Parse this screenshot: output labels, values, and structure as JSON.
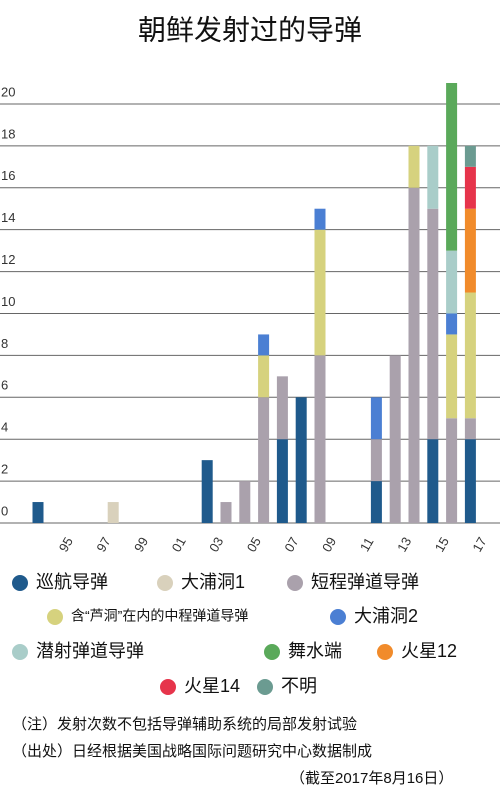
{
  "chart_data": {
    "type": "bar",
    "stacked": true,
    "title": "朝鲜发射过的导弹",
    "categories": [
      null,
      "95",
      null,
      "97",
      null,
      "99",
      null,
      "01",
      null,
      "03",
      null,
      "05",
      null,
      "07",
      null,
      "09",
      null,
      "11",
      null,
      "13",
      null,
      "15",
      null,
      "17"
    ],
    "series": [
      {
        "name": "巡航导弹",
        "color": "#1f5a8c",
        "values": [
          1,
          0,
          0,
          0,
          0,
          0,
          0,
          0,
          0,
          3,
          0,
          0,
          0,
          4,
          6,
          0,
          0,
          0,
          2,
          0,
          0,
          4,
          0,
          4
        ]
      },
      {
        "name": "大浦洞1",
        "color": "#d9d1bc",
        "values": [
          0,
          0,
          0,
          0,
          1,
          0,
          0,
          0,
          0,
          0,
          0,
          0,
          0,
          0,
          0,
          0,
          0,
          0,
          0,
          0,
          0,
          0,
          0,
          0
        ]
      },
      {
        "name": "短程弹道导弹",
        "color": "#aaa1ac",
        "values": [
          0,
          0,
          0,
          0,
          0,
          0,
          0,
          0,
          0,
          0,
          1,
          2,
          6,
          3,
          0,
          8,
          0,
          0,
          2,
          8,
          16,
          11,
          5,
          1
        ]
      },
      {
        "name": "含“芦洞”在内的中程弹道导弹",
        "color": "#d6d27e",
        "values": [
          0,
          0,
          0,
          0,
          0,
          0,
          0,
          0,
          0,
          0,
          0,
          0,
          2,
          0,
          0,
          6,
          0,
          0,
          0,
          0,
          2,
          0,
          4,
          6
        ]
      },
      {
        "name": "大浦洞2",
        "color": "#4b7fd3",
        "values": [
          0,
          0,
          0,
          0,
          0,
          0,
          0,
          0,
          0,
          0,
          0,
          0,
          1,
          0,
          0,
          1,
          0,
          0,
          2,
          0,
          0,
          0,
          1,
          0
        ]
      },
      {
        "name": "潜射弹道导弹",
        "color": "#a9cdc9",
        "values": [
          0,
          0,
          0,
          0,
          0,
          0,
          0,
          0,
          0,
          0,
          0,
          0,
          0,
          0,
          0,
          0,
          0,
          0,
          0,
          0,
          0,
          3,
          3,
          0
        ]
      },
      {
        "name": "舞水端",
        "color": "#5aa95a",
        "values": [
          0,
          0,
          0,
          0,
          0,
          0,
          0,
          0,
          0,
          0,
          0,
          0,
          0,
          0,
          0,
          0,
          0,
          0,
          0,
          0,
          0,
          0,
          8,
          0
        ]
      },
      {
        "name": "火星12",
        "color": "#f18b2b",
        "values": [
          0,
          0,
          0,
          0,
          0,
          0,
          0,
          0,
          0,
          0,
          0,
          0,
          0,
          0,
          0,
          0,
          0,
          0,
          0,
          0,
          0,
          0,
          0,
          4
        ]
      },
      {
        "name": "火星14",
        "color": "#e6344b",
        "values": [
          0,
          0,
          0,
          0,
          0,
          0,
          0,
          0,
          0,
          0,
          0,
          0,
          0,
          0,
          0,
          0,
          0,
          0,
          0,
          0,
          0,
          0,
          0,
          2
        ]
      },
      {
        "name": "不明",
        "color": "#6b9b91",
        "values": [
          0,
          0,
          0,
          0,
          0,
          0,
          0,
          0,
          0,
          0,
          0,
          0,
          0,
          0,
          0,
          0,
          0,
          0,
          0,
          0,
          0,
          0,
          0,
          1
        ]
      }
    ],
    "ylim": [
      0,
      21
    ],
    "yticks": [
      0,
      2,
      4,
      6,
      8,
      10,
      12,
      14,
      16,
      18,
      20
    ],
    "grid": true,
    "notes": [
      "（注）发射次数不包括导弹辅助系统的局部发射试验",
      "（出处）日经根据美国战略国际问题研究中心数据制成",
      "（截至2017年8月16日）"
    ]
  }
}
